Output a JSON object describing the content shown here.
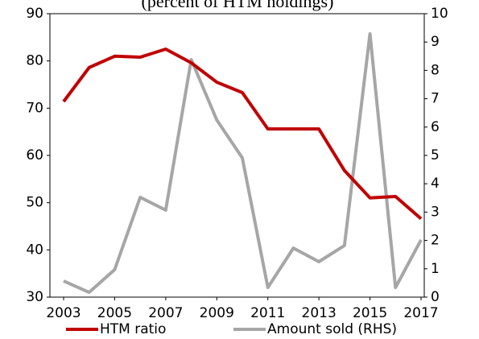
{
  "chart_data": {
    "type": "line",
    "subtitle": "(percent of HTM holdings)",
    "x": [
      2003,
      2004,
      2005,
      2006,
      2007,
      2008,
      2009,
      2010,
      2011,
      2012,
      2013,
      2014,
      2015,
      2016,
      2017
    ],
    "series": [
      {
        "name": "HTM ratio",
        "color": "#c00000",
        "values": [
          71.4,
          78.6,
          81,
          80.8,
          82.5,
          79.6,
          75.5,
          73.3,
          65.6,
          65.6,
          65.6,
          56.8,
          51,
          51.3,
          46.6
        ]
      },
      {
        "name": "Amount sold (RHS)",
        "color": "#a6a6a6",
        "axis": "y2",
        "values": [
          0.57,
          0.17,
          0.97,
          3.52,
          3.07,
          8.38,
          6.25,
          4.91,
          0.34,
          1.73,
          1.25,
          1.82,
          9.29,
          0.34,
          2.02
        ]
      }
    ],
    "xlim": [
      2003,
      2017
    ],
    "xticks": [
      2003,
      2005,
      2007,
      2009,
      2011,
      2013,
      2015,
      2017
    ],
    "ylim": [
      30,
      90
    ],
    "yticks": [
      30,
      40,
      50,
      60,
      70,
      80,
      90
    ],
    "y2lim": [
      0,
      10
    ],
    "y2ticks": [
      0,
      1,
      2,
      3,
      4,
      5,
      6,
      7,
      8,
      9,
      10
    ],
    "legend": "bottom"
  }
}
